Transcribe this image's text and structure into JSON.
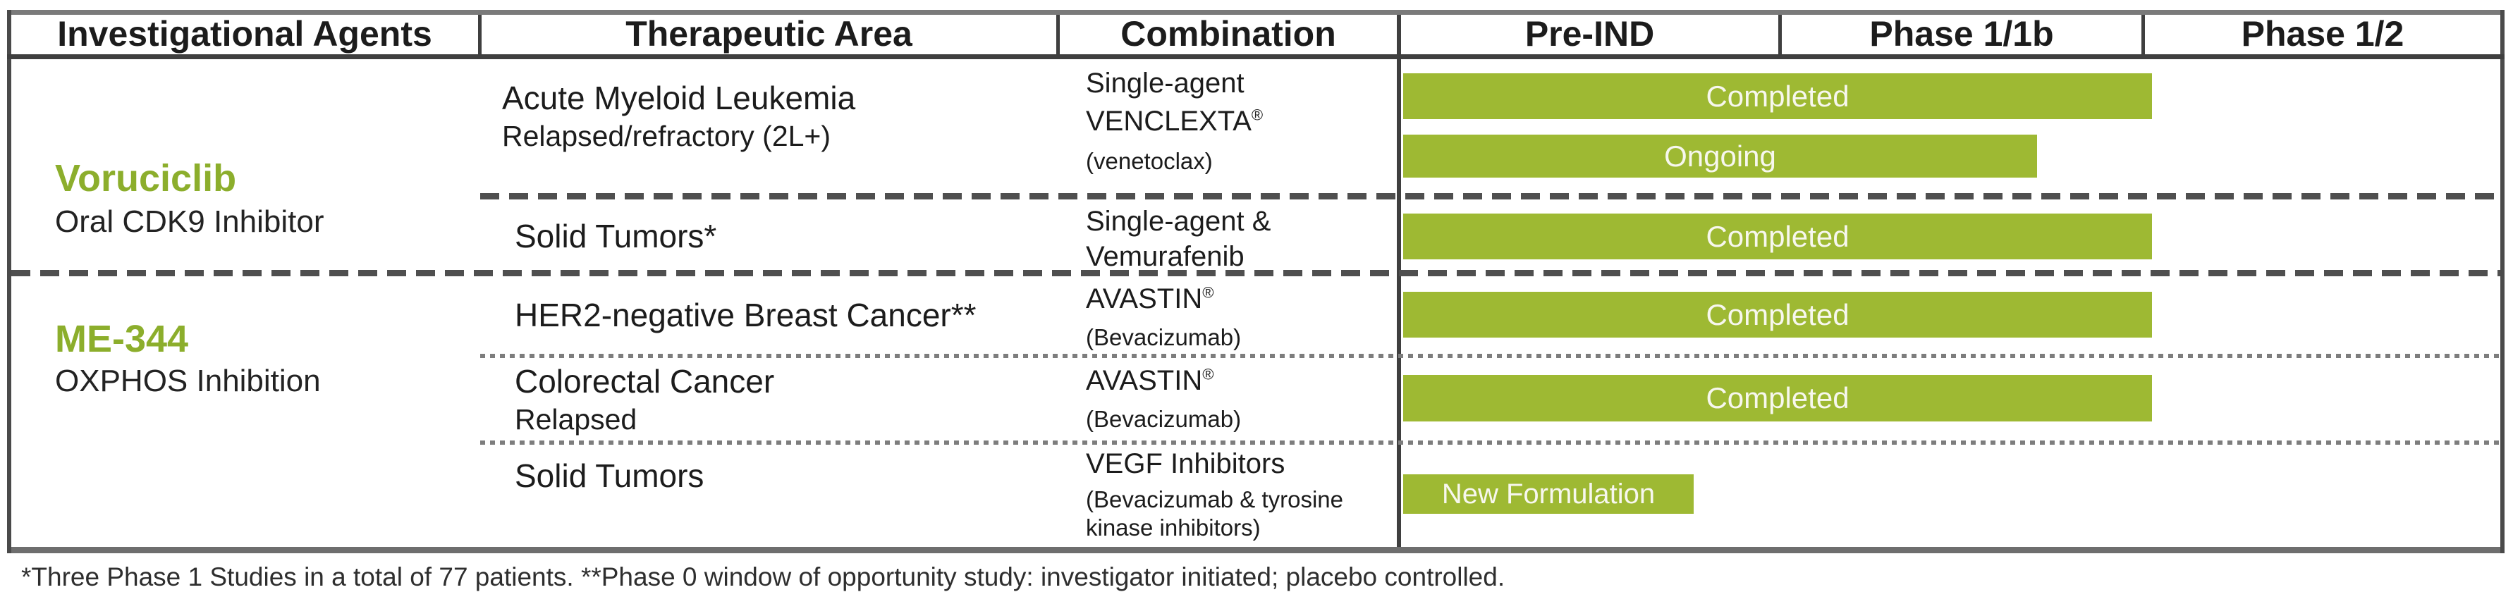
{
  "header": {
    "columns": [
      "Investigational Agents",
      "Therapeutic Area",
      "Combination",
      "Pre-IND",
      "Phase 1/1b",
      "Phase 1/2"
    ]
  },
  "agents": [
    {
      "name": "Voruciclib",
      "moa": "Oral CDK9 Inhibitor",
      "programs": [
        {
          "area": "Acute Myeloid Leukemia",
          "area_sub": "Relapsed/refractory (2L+)",
          "combination": [
            "Single-agent",
            "VENCLEXTA®",
            "(venetoclax)"
          ],
          "bars": [
            {
              "label": "Completed"
            },
            {
              "label": "Ongoing"
            }
          ]
        },
        {
          "area": "Solid Tumors*",
          "combination": [
            "Single-agent &",
            "Vemurafenib"
          ],
          "bars": [
            {
              "label": "Completed"
            }
          ]
        }
      ]
    },
    {
      "name": "ME-344",
      "moa": "OXPHOS Inhibition",
      "programs": [
        {
          "area": "HER2-negative Breast Cancer**",
          "combination": [
            "AVASTIN®",
            "(Bevacizumab)"
          ],
          "bars": [
            {
              "label": "Completed"
            }
          ]
        },
        {
          "area": "Colorectal Cancer",
          "area_sub": "Relapsed",
          "combination": [
            "AVASTIN®",
            "(Bevacizumab)"
          ],
          "bars": [
            {
              "label": "Completed"
            }
          ]
        },
        {
          "area": "Solid Tumors",
          "combination": [
            "VEGF Inhibitors",
            "(Bevacizumab & tyrosine",
            "kinase inhibitors)"
          ],
          "bars": [
            {
              "label": "New Formulation"
            }
          ]
        }
      ]
    }
  ],
  "footnote": "*Three Phase 1 Studies in a total of 77 patients. **Phase 0 window of opportunity study: investigator initiated; placebo controlled.",
  "colors": {
    "bar_green": "#9eb933",
    "agent_green": "#8cae2c",
    "border_dark": "#3f3f3f",
    "border_gray": "#7a7a7a"
  },
  "chart_data": {
    "type": "bar",
    "variant": "pipeline-gantt",
    "title": "Clinical development pipeline",
    "phase_axis": [
      "Pre-IND",
      "Phase 1/1b",
      "Phase 1/2"
    ],
    "legend_position": "none",
    "grid": false,
    "rows": [
      {
        "agent": "Voruciclib (Oral CDK9 Inhibitor)",
        "area": "Acute Myeloid Leukemia — Relapsed/refractory (2L+)",
        "combination": "Single-agent VENCLEXTA® (venetoclax)",
        "bars": [
          {
            "label": "Completed",
            "phase_start": 0,
            "phase_end": 2.0
          },
          {
            "label": "Ongoing",
            "phase_start": 0,
            "phase_end": 1.7
          }
        ]
      },
      {
        "agent": "Voruciclib (Oral CDK9 Inhibitor)",
        "area": "Solid Tumors*",
        "combination": "Single-agent & Vemurafenib",
        "bars": [
          {
            "label": "Completed",
            "phase_start": 0,
            "phase_end": 2.0
          }
        ]
      },
      {
        "agent": "ME-344 (OXPHOS Inhibition)",
        "area": "HER2-negative Breast Cancer**",
        "combination": "AVASTIN® (Bevacizumab)",
        "bars": [
          {
            "label": "Completed",
            "phase_start": 0,
            "phase_end": 2.0
          }
        ]
      },
      {
        "agent": "ME-344 (OXPHOS Inhibition)",
        "area": "Colorectal Cancer — Relapsed",
        "combination": "AVASTIN® (Bevacizumab)",
        "bars": [
          {
            "label": "Completed",
            "phase_start": 0,
            "phase_end": 2.0
          }
        ]
      },
      {
        "agent": "ME-344 (OXPHOS Inhibition)",
        "area": "Solid Tumors",
        "combination": "VEGF Inhibitors (Bevacizumab & tyrosine kinase inhibitors)",
        "bars": [
          {
            "label": "New Formulation",
            "phase_start": 0,
            "phase_end": 0.77
          }
        ]
      }
    ]
  }
}
